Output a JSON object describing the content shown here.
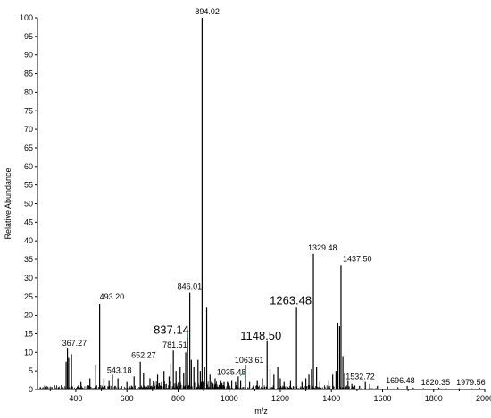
{
  "chart_data": {
    "type": "line",
    "xlabel": "m/z",
    "ylabel": "Relative Abundance",
    "xlim": [
      250,
      2000
    ],
    "ylim": [
      0,
      100
    ],
    "x_ticks": [
      400,
      600,
      800,
      1000,
      1200,
      1400,
      1600,
      1800,
      2000
    ],
    "y_ticks": [
      0,
      5,
      10,
      15,
      20,
      25,
      30,
      35,
      40,
      45,
      50,
      55,
      60,
      65,
      70,
      75,
      80,
      85,
      90,
      95,
      100
    ],
    "grid": false,
    "labeled_peaks": [
      {
        "x": 894.02,
        "y": 100,
        "label": "894.02",
        "large": false
      },
      {
        "x": 1329.48,
        "y": 36.5,
        "label": "1329.48",
        "large": false
      },
      {
        "x": 1437.5,
        "y": 33.5,
        "label": "1437.50",
        "large": false
      },
      {
        "x": 846.01,
        "y": 26,
        "label": "846.01",
        "large": false
      },
      {
        "x": 493.2,
        "y": 23,
        "label": "493.20",
        "large": false
      },
      {
        "x": 1263.48,
        "y": 22,
        "label": "1263.48",
        "large": true
      },
      {
        "x": 837.14,
        "y": 16,
        "label": "837.14",
        "large": true
      },
      {
        "x": 1148.5,
        "y": 13,
        "label": "1148.50",
        "large": true
      },
      {
        "x": 367.27,
        "y": 11,
        "label": "367.27",
        "large": false
      },
      {
        "x": 781.51,
        "y": 10.5,
        "label": "781.51",
        "large": false
      },
      {
        "x": 652.27,
        "y": 7.5,
        "label": "652.27",
        "large": false
      },
      {
        "x": 1063.61,
        "y": 6.5,
        "label": "1063.61",
        "large": false
      },
      {
        "x": 543.18,
        "y": 4,
        "label": "543.18",
        "large": false
      },
      {
        "x": 1035.48,
        "y": 3.5,
        "label": "1035.48",
        "large": false
      },
      {
        "x": 1532.72,
        "y": 2,
        "label": "1532.72",
        "large": false
      },
      {
        "x": 1696.48,
        "y": 1,
        "label": "1696.48",
        "large": false
      },
      {
        "x": 1820.35,
        "y": 0.5,
        "label": "1820.35",
        "large": false
      },
      {
        "x": 1979.56,
        "y": 0.5,
        "label": "1979.56",
        "large": false
      }
    ],
    "unlabeled_peaks": [
      {
        "x": 362,
        "y": 7.5
      },
      {
        "x": 372,
        "y": 8.5
      },
      {
        "x": 383,
        "y": 9.5
      },
      {
        "x": 420,
        "y": 2
      },
      {
        "x": 455,
        "y": 3
      },
      {
        "x": 478,
        "y": 6.5
      },
      {
        "x": 510,
        "y": 3
      },
      {
        "x": 530,
        "y": 2.5
      },
      {
        "x": 565,
        "y": 3
      },
      {
        "x": 600,
        "y": 2
      },
      {
        "x": 628,
        "y": 3.5
      },
      {
        "x": 665,
        "y": 4.5
      },
      {
        "x": 690,
        "y": 3
      },
      {
        "x": 720,
        "y": 4
      },
      {
        "x": 745,
        "y": 5
      },
      {
        "x": 765,
        "y": 3.5
      },
      {
        "x": 772,
        "y": 7
      },
      {
        "x": 792,
        "y": 5
      },
      {
        "x": 808,
        "y": 6
      },
      {
        "x": 822,
        "y": 4.5
      },
      {
        "x": 830,
        "y": 10
      },
      {
        "x": 852,
        "y": 8
      },
      {
        "x": 862,
        "y": 6
      },
      {
        "x": 878,
        "y": 8
      },
      {
        "x": 887,
        "y": 5
      },
      {
        "x": 904,
        "y": 6
      },
      {
        "x": 912,
        "y": 22
      },
      {
        "x": 925,
        "y": 4
      },
      {
        "x": 945,
        "y": 3
      },
      {
        "x": 965,
        "y": 2.5
      },
      {
        "x": 980,
        "y": 2
      },
      {
        "x": 1010,
        "y": 2.5
      },
      {
        "x": 1025,
        "y": 2
      },
      {
        "x": 1045,
        "y": 2.5
      },
      {
        "x": 1080,
        "y": 2
      },
      {
        "x": 1110,
        "y": 2.5
      },
      {
        "x": 1130,
        "y": 3
      },
      {
        "x": 1160,
        "y": 5.5
      },
      {
        "x": 1175,
        "y": 4
      },
      {
        "x": 1190,
        "y": 6
      },
      {
        "x": 1200,
        "y": 3
      },
      {
        "x": 1215,
        "y": 2
      },
      {
        "x": 1240,
        "y": 2.5
      },
      {
        "x": 1285,
        "y": 2
      },
      {
        "x": 1300,
        "y": 3
      },
      {
        "x": 1312,
        "y": 4
      },
      {
        "x": 1322,
        "y": 5.5
      },
      {
        "x": 1342,
        "y": 6
      },
      {
        "x": 1355,
        "y": 2
      },
      {
        "x": 1390,
        "y": 2.5
      },
      {
        "x": 1405,
        "y": 4
      },
      {
        "x": 1418,
        "y": 5
      },
      {
        "x": 1425,
        "y": 18
      },
      {
        "x": 1432,
        "y": 17
      },
      {
        "x": 1445,
        "y": 9
      },
      {
        "x": 1452,
        "y": 4.5
      },
      {
        "x": 1465,
        "y": 2.5
      },
      {
        "x": 1480,
        "y": 1.5
      },
      {
        "x": 1510,
        "y": 1
      },
      {
        "x": 1550,
        "y": 1.5
      },
      {
        "x": 1580,
        "y": 1
      },
      {
        "x": 1620,
        "y": 0.8
      },
      {
        "x": 1660,
        "y": 0.6
      },
      {
        "x": 1720,
        "y": 0.5
      },
      {
        "x": 1760,
        "y": 0.4
      },
      {
        "x": 1850,
        "y": 0.3
      },
      {
        "x": 1900,
        "y": 0.3
      },
      {
        "x": 1950,
        "y": 0.3
      }
    ]
  }
}
